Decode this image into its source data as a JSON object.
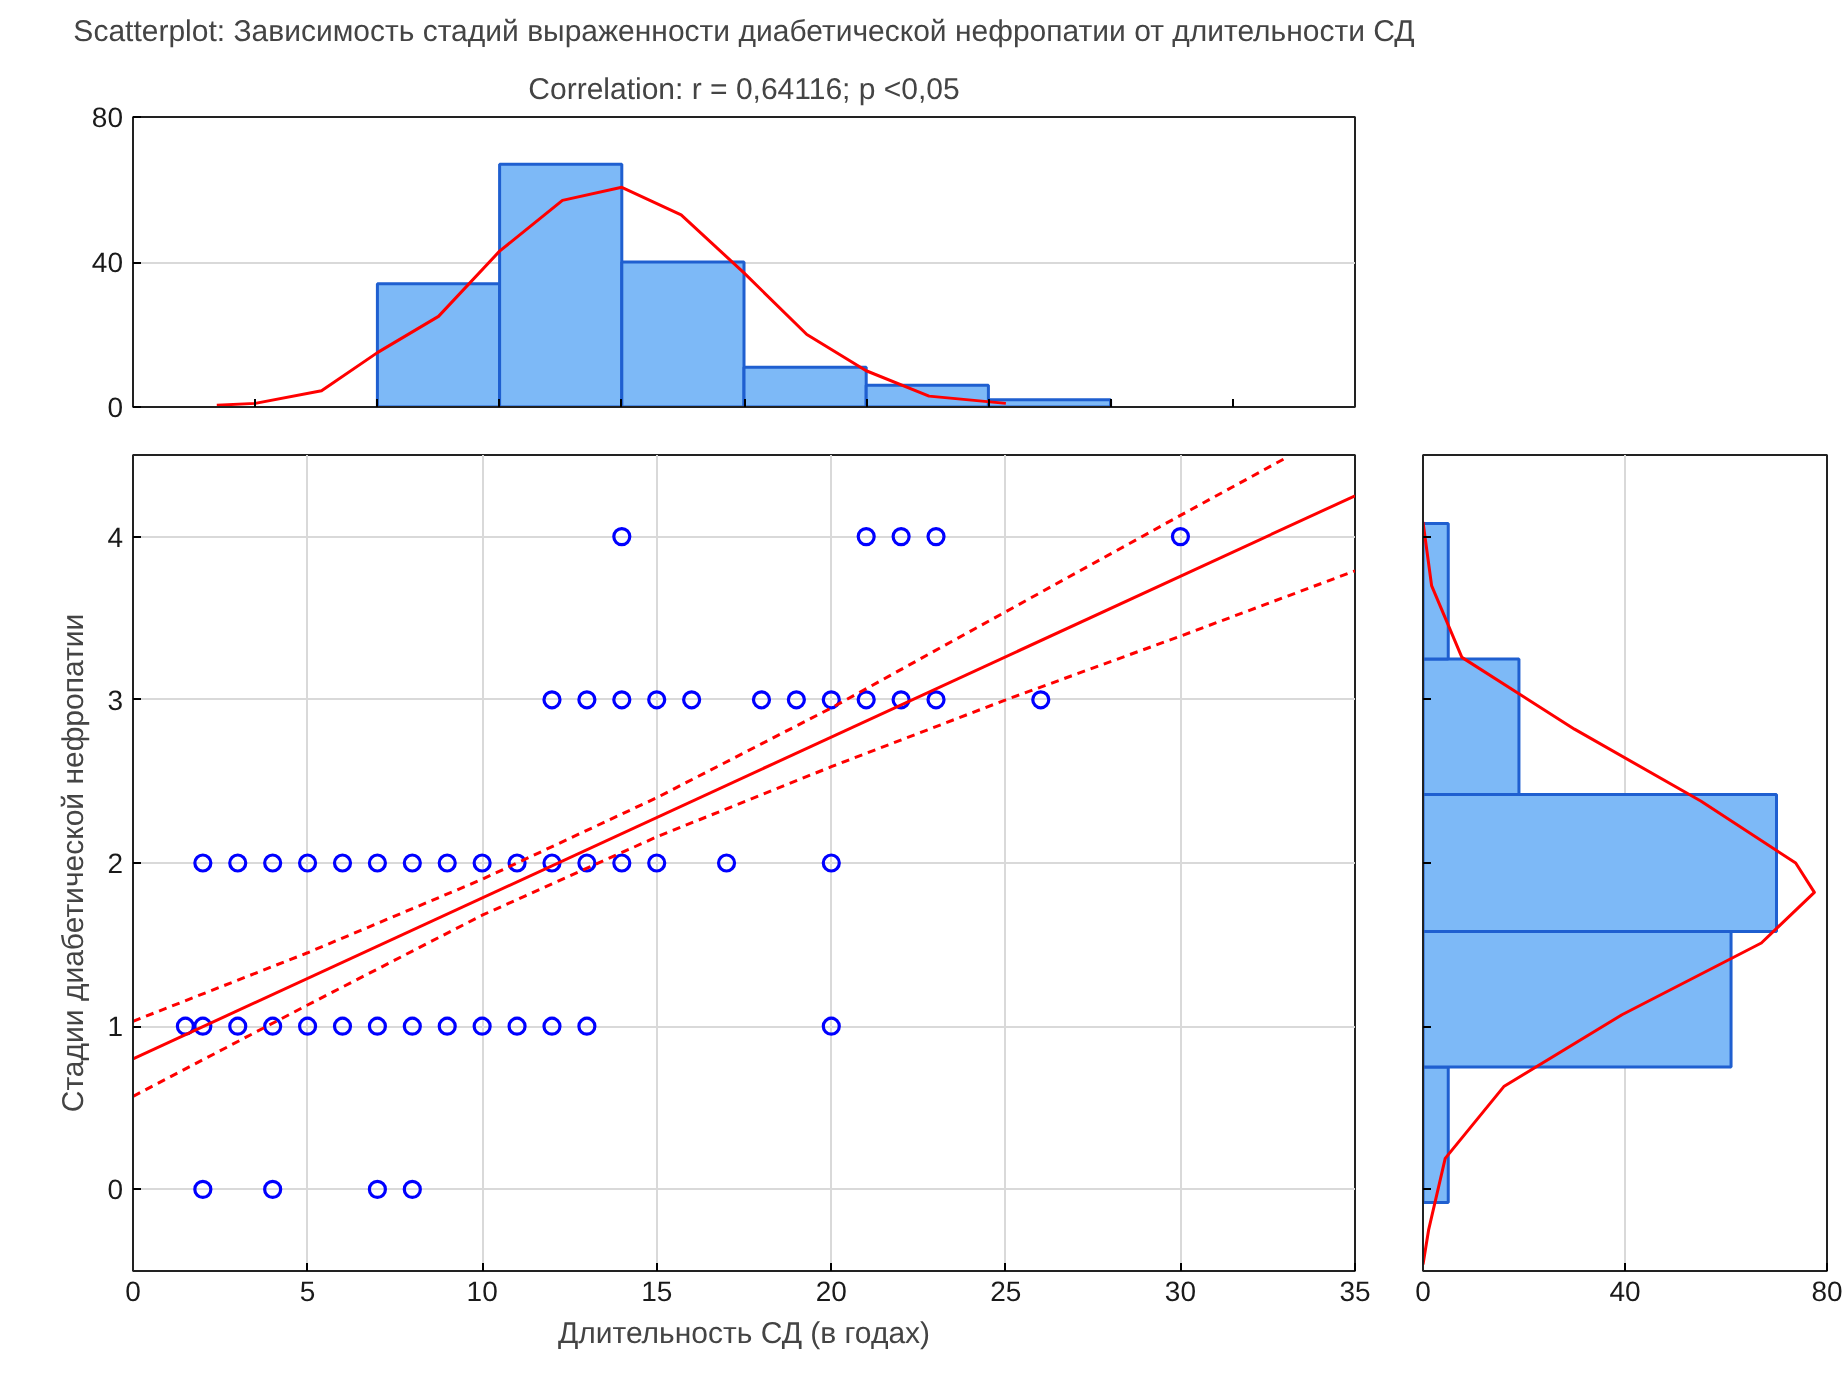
{
  "chart_data": [
    {
      "type": "histogram",
      "title": "Scatterplot: Зависимость стадий выраженности диабетической нефропатии от длительности СД",
      "subtitle": "Correlation: r = 0,64116; p <0,05",
      "xlim": [
        0,
        35
      ],
      "xticks": [
        {
          "value": 3.5,
          "label": null
        },
        {
          "value": 7,
          "label": null
        },
        {
          "value": 10.5,
          "label": null
        },
        {
          "value": 14,
          "label": null
        },
        {
          "value": 17.5,
          "label": null
        },
        {
          "value": 21,
          "label": null
        },
        {
          "value": 24.5,
          "label": null
        },
        {
          "value": 28,
          "label": null
        },
        {
          "value": 31.5,
          "label": null
        }
      ],
      "ylim": [
        0,
        80
      ],
      "yticks": [
        0,
        40,
        80
      ],
      "grid": "y",
      "tick_labels": "y",
      "series": [
        {
          "color": "#7db9f7",
          "bins": [
            7,
            10.5,
            14,
            17.5,
            21,
            24.5,
            28
          ],
          "values": [
            34,
            67,
            40,
            11,
            6,
            2
          ]
        },
        {
          "type": "line",
          "color": "#ff0000",
          "x": [
            2.4,
            3.5,
            5.4,
            7,
            8.75,
            10.5,
            12.3,
            14,
            15.7,
            17.5,
            19.3,
            21,
            22.8,
            25
          ],
          "values": [
            0.5,
            1,
            4.5,
            15,
            25,
            43,
            57,
            60.6,
            53,
            37,
            20,
            10,
            3,
            1
          ]
        }
      ]
    },
    {
      "type": "scatter",
      "xlabel": "Длительность СД (в годах)",
      "ylabel": "Стадии диабетической нефропатии",
      "xlim": [
        0,
        35
      ],
      "xticks": [
        0,
        5,
        10,
        15,
        20,
        25,
        30,
        35
      ],
      "ylim": [
        -0.5,
        4.5
      ],
      "yticks": [
        0,
        1,
        2,
        3,
        4
      ],
      "grid": true,
      "series": [
        {
          "marker": "circle",
          "color": "#0000ff",
          "x": [
            2,
            4,
            7,
            8,
            1.5,
            2,
            3,
            4,
            5,
            6,
            7,
            8,
            9,
            10,
            11,
            12,
            13,
            20,
            2,
            3,
            4,
            5,
            6,
            7,
            8,
            9,
            10,
            11,
            12,
            13,
            14,
            15,
            17,
            20,
            12,
            13,
            14,
            15,
            16,
            18,
            19,
            20,
            21,
            22,
            23,
            26,
            14,
            21,
            22,
            23,
            30
          ],
          "values": [
            0,
            0,
            0,
            0,
            1,
            1,
            1,
            1,
            1,
            1,
            1,
            1,
            1,
            1,
            1,
            1,
            1,
            1,
            2,
            2,
            2,
            2,
            2,
            2,
            2,
            2,
            2,
            2,
            2,
            2,
            2,
            2,
            2,
            2,
            3,
            3,
            3,
            3,
            3,
            3,
            3,
            3,
            3,
            3,
            3,
            3,
            4,
            4,
            4,
            4,
            4
          ]
        },
        {
          "type": "line",
          "color": "#ff0000",
          "line_style": "solid",
          "x": [
            0,
            35
          ],
          "values": [
            0.8,
            4.25
          ]
        },
        {
          "type": "line",
          "color": "#ff0000",
          "line_style": "dashed",
          "x": [
            0,
            5,
            10,
            15,
            20,
            25,
            30,
            33
          ],
          "values": [
            1.03,
            1.45,
            1.9,
            2.4,
            2.95,
            3.54,
            4.13,
            4.48
          ]
        },
        {
          "type": "line",
          "color": "#ff0000",
          "line_style": "dashed",
          "x": [
            0,
            5,
            10,
            15,
            20,
            25,
            30,
            35
          ],
          "values": [
            0.57,
            1.13,
            1.68,
            2.16,
            2.59,
            3.0,
            3.39,
            3.79
          ]
        }
      ]
    },
    {
      "type": "histogram",
      "orientation": "horizontal",
      "xlim": [
        0,
        80
      ],
      "xticks": [
        0,
        40,
        80
      ],
      "ylim": [
        -0.5,
        4.5
      ],
      "yticks": [
        {
          "value": 0,
          "label": null
        },
        {
          "value": 1,
          "label": null
        },
        {
          "value": 2,
          "label": null
        },
        {
          "value": 3,
          "label": null
        },
        {
          "value": 4,
          "label": null
        }
      ],
      "grid": "x",
      "tick_labels": "x",
      "series": [
        {
          "color": "#7db9f7",
          "bins": [
            -0.08,
            0.75,
            1.58,
            2.42,
            3.25,
            4.08
          ],
          "values": [
            5,
            61,
            70,
            19,
            5
          ]
        },
        {
          "type": "line",
          "color": "#ff0000",
          "x": [
            -0.46,
            -0.25,
            0.19,
            0.63,
            1.07,
            1.51,
            1.82,
            2.0,
            2.38,
            2.82,
            3.26,
            3.7,
            4.09
          ],
          "values": [
            0,
            1.1,
            4.4,
            16,
            39.4,
            67,
            77.5,
            73.8,
            55,
            30,
            7.7,
            1.7,
            0
          ]
        }
      ]
    }
  ]
}
